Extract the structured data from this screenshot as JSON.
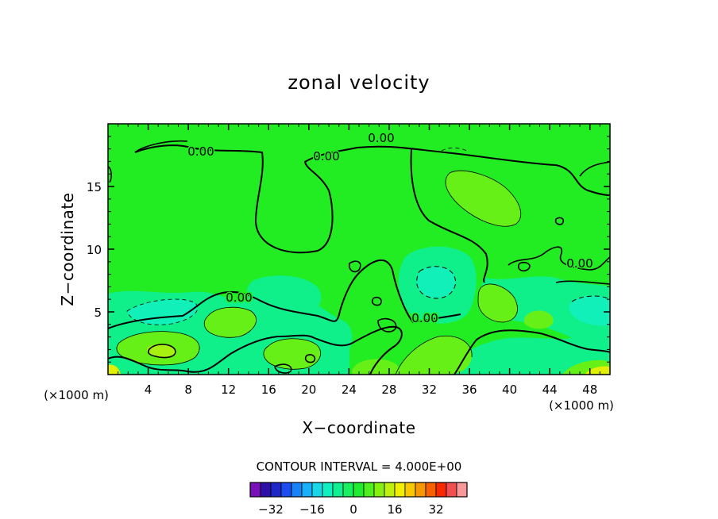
{
  "chart_data": {
    "type": "contour",
    "title": "zonal velocity",
    "xlabel": "X−coordinate",
    "ylabel": "Z−coordinate",
    "x_unit_left": "(×1000 m)",
    "x_unit_right": "(×1000 m)",
    "xlim": [
      0,
      50
    ],
    "ylim": [
      0,
      20
    ],
    "x_ticks": [
      4,
      8,
      12,
      16,
      20,
      24,
      28,
      32,
      36,
      40,
      44,
      48
    ],
    "x_tick_labels": [
      "4",
      "8",
      "12",
      "16",
      "20",
      "24",
      "28",
      "32",
      "36",
      "40",
      "44",
      "48"
    ],
    "y_ticks": [
      5,
      10,
      15
    ],
    "y_tick_labels": [
      "5",
      "10",
      "15"
    ],
    "contour_labels": [
      "0.00",
      "0.00",
      "0.00",
      "0.00",
      "0.00",
      "0.00"
    ],
    "contour_interval_text": "CONTOUR INTERVAL = 4.000E+00",
    "colorbar": {
      "levels": [
        -40,
        -36,
        -32,
        -28,
        -24,
        -20,
        -16,
        -12,
        -8,
        -4,
        0,
        4,
        8,
        12,
        16,
        20,
        24,
        28,
        32,
        36,
        40
      ],
      "tick_values": [
        -32,
        -16,
        0,
        16,
        32
      ],
      "tick_labels": [
        "−32",
        "−16",
        "0",
        "16",
        "32"
      ],
      "colors": [
        "#7a10b8",
        "#2e10a8",
        "#1e28c8",
        "#1a4cf0",
        "#1a82f8",
        "#18b0f8",
        "#18d8e8",
        "#10f0c0",
        "#10f090",
        "#18f060",
        "#20ec30",
        "#50f020",
        "#88f010",
        "#c0f010",
        "#f0f000",
        "#f8c800",
        "#f89800",
        "#f86000",
        "#f82800",
        "#f05050",
        "#f89898"
      ]
    },
    "colors": {
      "base_green": "#22ec22",
      "light_green": "#66f018",
      "cyan_green": "#10f08a",
      "teal": "#10f0b8",
      "yellow_green": "#a8f010",
      "yellow": "#e0f000"
    }
  }
}
